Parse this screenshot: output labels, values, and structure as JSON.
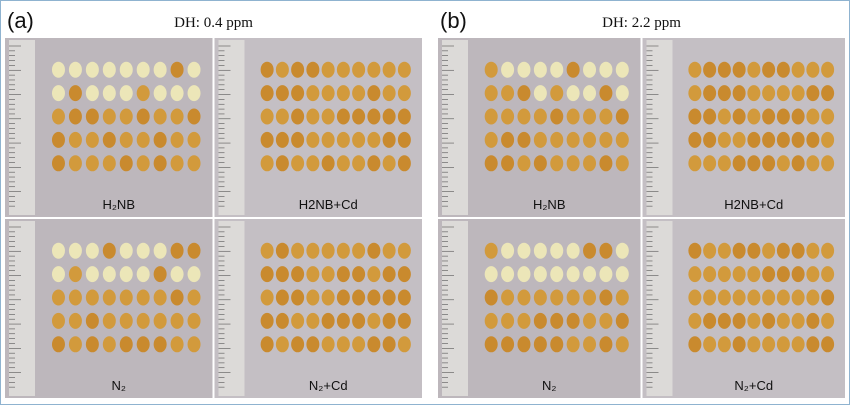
{
  "panels": [
    {
      "label": "(a)",
      "title": "DH: 0.4 ppm",
      "images": [
        {
          "label": "H₂NB"
        },
        {
          "label": "H2NB+Cd"
        },
        {
          "label": "N₂"
        },
        {
          "label": "N₂+Cd"
        }
      ]
    },
    {
      "label": "(b)",
      "title": "DH: 2.2 ppm",
      "images": [
        {
          "label": "H₂NB"
        },
        {
          "label": "H2NB+Cd"
        },
        {
          "label": "N₂"
        },
        {
          "label": "N₂+Cd"
        }
      ]
    }
  ]
}
